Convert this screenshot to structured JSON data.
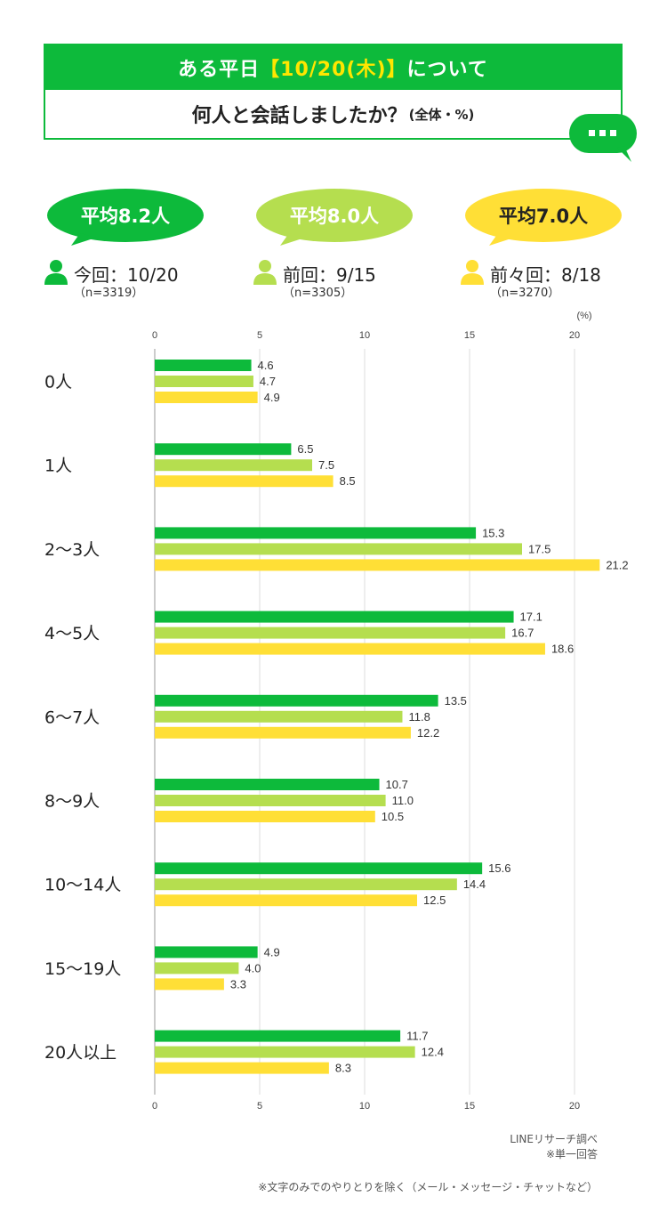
{
  "header": {
    "line1_prefix": "ある平日",
    "line1_highlight": "【10/20(木)】",
    "line1_suffix": "について",
    "line2_main": "何人と会話しましたか？",
    "line2_small": "(全体・%)"
  },
  "bubbles": [
    {
      "text": "平均8.2人",
      "color": "#0dba3b",
      "text_color": "#ffffff"
    },
    {
      "text": "平均8.0人",
      "color": "#b5de4f",
      "text_color": "#ffffff"
    },
    {
      "text": "平均7.0人",
      "color": "#ffdf36",
      "text_color": "#222222"
    }
  ],
  "legend": [
    {
      "label": "今回：10/20",
      "n": "（n=3319）",
      "color": "#0dba3b"
    },
    {
      "label": "前回：9/15",
      "n": "（n=3305）",
      "color": "#b5de4f"
    },
    {
      "label": "前々回：8/18",
      "n": "（n=3270）",
      "color": "#ffdf36"
    }
  ],
  "chart_data": {
    "type": "bar",
    "orientation": "horizontal",
    "unit_label": "(%)",
    "xlim": [
      0,
      20
    ],
    "xticks": [
      0,
      5,
      10,
      15,
      20
    ],
    "grid": true,
    "categories": [
      "0人",
      "1人",
      "2〜3人",
      "4〜5人",
      "6〜7人",
      "8〜9人",
      "10〜14人",
      "15〜19人",
      "20人以上"
    ],
    "series": [
      {
        "name": "今回：10/20",
        "color": "#0dba3b",
        "values": [
          4.6,
          6.5,
          15.3,
          17.1,
          13.5,
          10.7,
          15.6,
          4.9,
          11.7
        ]
      },
      {
        "name": "前回：9/15",
        "color": "#b5de4f",
        "values": [
          4.7,
          7.5,
          17.5,
          16.7,
          11.8,
          11.0,
          14.4,
          4.0,
          12.4
        ]
      },
      {
        "name": "前々回：8/18",
        "color": "#ffdf36",
        "values": [
          4.9,
          8.5,
          21.2,
          18.6,
          12.2,
          10.5,
          12.5,
          3.3,
          8.3
        ]
      }
    ]
  },
  "footer": {
    "source_line1": "LINEリサーチ調べ",
    "source_line2": "※単一回答",
    "note": "※文字のみでのやりとりを除く（メール・メッセージ・チャットなど）"
  }
}
